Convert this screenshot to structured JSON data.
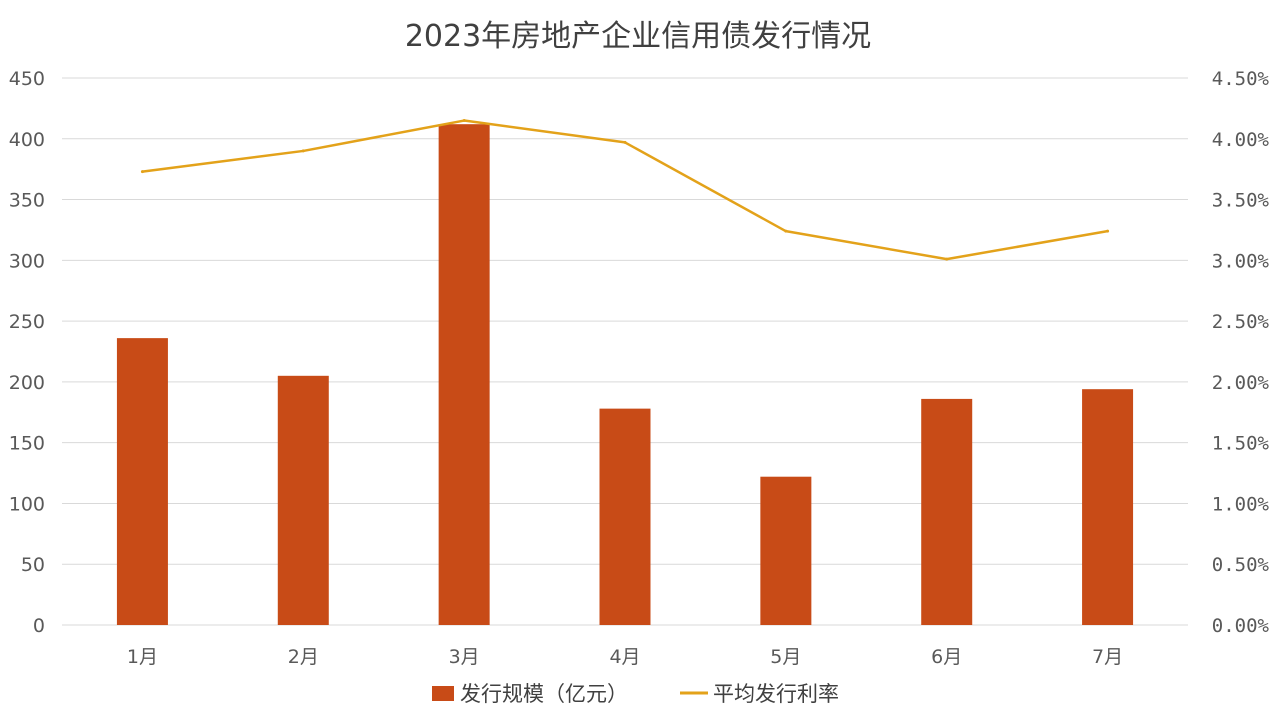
{
  "chart_data": {
    "type": "bar",
    "title": "2023年房地产企业信用债发行情况",
    "categories": [
      "1月",
      "2月",
      "3月",
      "4月",
      "5月",
      "6月",
      "7月"
    ],
    "series": [
      {
        "name": "发行规模（亿元）",
        "type": "bar",
        "axis": "left",
        "values": [
          236,
          205,
          412,
          178,
          122,
          186,
          194
        ]
      },
      {
        "name": "平均发行利率",
        "type": "line",
        "axis": "right",
        "values": [
          3.73,
          3.9,
          4.15,
          3.97,
          3.24,
          3.01,
          3.24
        ]
      }
    ],
    "y_left": {
      "ylim": [
        0,
        450
      ],
      "ticks": [
        "0",
        "50",
        "100",
        "150",
        "200",
        "250",
        "300",
        "350",
        "400",
        "450"
      ]
    },
    "y_right": {
      "ylim": [
        0,
        4.5
      ],
      "ticks": [
        "0.00%",
        "0.50%",
        "1.00%",
        "1.50%",
        "2.00%",
        "2.50%",
        "3.00%",
        "3.50%",
        "4.00%",
        "4.50%"
      ]
    },
    "grid": true,
    "legend_position": "bottom",
    "colors": {
      "bar": "#C84B17",
      "line": "#E3A21A",
      "grid": "#D9D9D9"
    }
  }
}
